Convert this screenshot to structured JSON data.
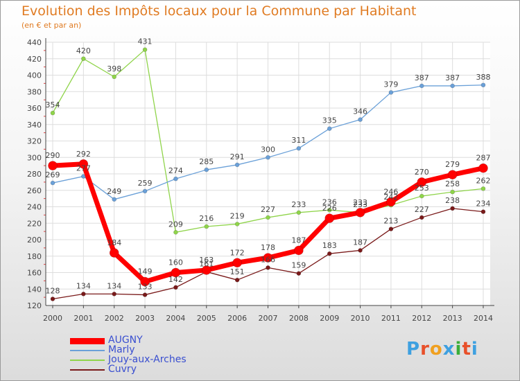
{
  "chart_data": {
    "type": "line",
    "title": "Evolution des Impôts locaux pour la Commune par Habitant",
    "subtitle": "(en € et par an)",
    "xlabel": "",
    "ylabel": "",
    "ylim": [
      120,
      440
    ],
    "yticks": [
      120,
      140,
      160,
      180,
      200,
      220,
      240,
      260,
      280,
      300,
      320,
      340,
      360,
      380,
      400,
      420,
      440
    ],
    "grid": true,
    "legend_position": "bottom-left",
    "x": [
      "2000",
      "2001",
      "2002",
      "2003",
      "2004",
      "2005",
      "2006",
      "2007",
      "2008",
      "2009",
      "2010",
      "2011",
      "2012",
      "2013",
      "2014"
    ],
    "series": [
      {
        "name": "Cuvry",
        "color": "#7a1a1a",
        "values": [
          128,
          134,
          134,
          133,
          142,
          161,
          151,
          166,
          159,
          183,
          187,
          213,
          227,
          238,
          234
        ],
        "labels": [
          "128",
          "134",
          "134",
          "133",
          "142",
          "161",
          "151",
          "166",
          "159",
          "183",
          "187",
          "213",
          "227",
          "238",
          "234"
        ]
      },
      {
        "name": "Jouy-aux-Arches",
        "color": "#8fd44a",
        "values": [
          354,
          420,
          398,
          431,
          209,
          216,
          219,
          227,
          233,
          236,
          233,
          242,
          253,
          258,
          262
        ],
        "labels": [
          "354",
          "420",
          "398",
          "431",
          "209",
          "216",
          "219",
          "227",
          "233",
          "236",
          "233",
          "242",
          "253",
          "258",
          "262"
        ]
      },
      {
        "name": "Marly",
        "color": "#6aa0d8",
        "values": [
          269,
          277,
          249,
          259,
          274,
          285,
          291,
          300,
          311,
          335,
          346,
          379,
          387,
          387,
          388
        ],
        "labels": [
          "269",
          "277",
          "249",
          "259",
          "274",
          "285",
          "291",
          "300",
          "311",
          "335",
          "346",
          "379",
          "387",
          "387",
          "388"
        ]
      },
      {
        "name": "AUGNY",
        "color": "#ff0000",
        "values": [
          290,
          292,
          184,
          149,
          160,
          163,
          172,
          178,
          187,
          226,
          233,
          246,
          270,
          279,
          287
        ],
        "labels": [
          "290",
          "292",
          "184",
          "149",
          "160",
          "163",
          "172",
          "178",
          "187",
          "226",
          "233",
          "246",
          "270",
          "279",
          "287"
        ]
      }
    ]
  },
  "legend": {
    "items": [
      {
        "label": "AUGNY",
        "color": "#ff0000"
      },
      {
        "label": "Marly",
        "color": "#6aa0d8"
      },
      {
        "label": "Jouy-aux-Arches",
        "color": "#8fd44a"
      },
      {
        "label": "Cuvry",
        "color": "#7a1a1a"
      }
    ]
  },
  "brand": {
    "text": "Proxiti",
    "letter_colors": [
      "#3ea0e0",
      "#e8502a",
      "#f0a020",
      "#3ea0e0",
      "#3aae3a",
      "#e8502a",
      "#3ea0e0"
    ]
  }
}
